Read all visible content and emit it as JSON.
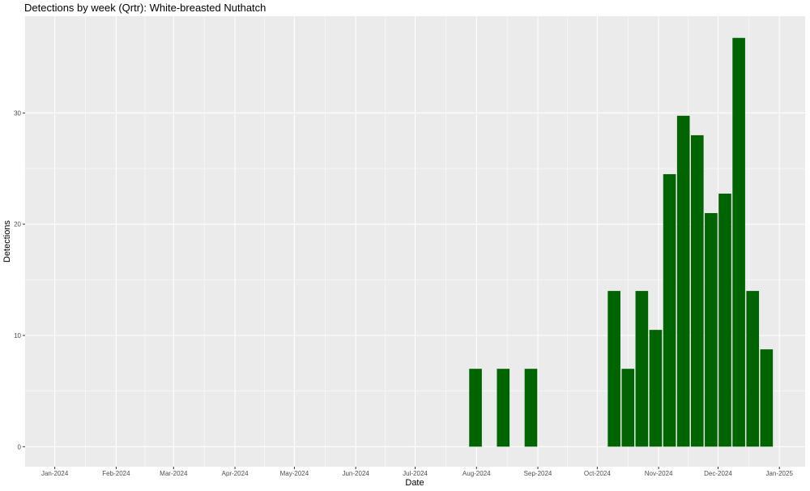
{
  "chart_data": {
    "type": "bar",
    "title": "Detections by week (Qrtr): White-breasted Nuthatch",
    "xlabel": "Date",
    "ylabel": "Detections",
    "x_range": [
      "2023-12-17",
      "2025-01-14"
    ],
    "ylim": [
      -1.8,
      38.7
    ],
    "x_ticks": [
      {
        "date": "2024-01-01",
        "label": "Jan-2024"
      },
      {
        "date": "2024-02-01",
        "label": "Feb-2024"
      },
      {
        "date": "2024-03-01",
        "label": "Mar-2024"
      },
      {
        "date": "2024-04-01",
        "label": "Apr-2024"
      },
      {
        "date": "2024-05-01",
        "label": "May-2024"
      },
      {
        "date": "2024-06-01",
        "label": "Jun-2024"
      },
      {
        "date": "2024-07-01",
        "label": "Jul-2024"
      },
      {
        "date": "2024-08-01",
        "label": "Aug-2024"
      },
      {
        "date": "2024-09-01",
        "label": "Sep-2024"
      },
      {
        "date": "2024-10-01",
        "label": "Oct-2024"
      },
      {
        "date": "2024-11-01",
        "label": "Nov-2024"
      },
      {
        "date": "2024-12-01",
        "label": "Dec-2024"
      },
      {
        "date": "2025-01-01",
        "label": "Jan-2025"
      }
    ],
    "y_ticks": [
      0,
      10,
      20,
      30
    ],
    "grid": true,
    "bar_color": "#006400",
    "panel_color": "#EBEBEB",
    "grid_color": "#FFFFFF",
    "bars": [
      {
        "week_start": "2024-07-28",
        "value": 7
      },
      {
        "week_start": "2024-08-11",
        "value": 7
      },
      {
        "week_start": "2024-08-25",
        "value": 7
      },
      {
        "week_start": "2024-10-06",
        "value": 14
      },
      {
        "week_start": "2024-10-13",
        "value": 7
      },
      {
        "week_start": "2024-10-20",
        "value": 14
      },
      {
        "week_start": "2024-10-27",
        "value": 10.5
      },
      {
        "week_start": "2024-11-03",
        "value": 24.5
      },
      {
        "week_start": "2024-11-10",
        "value": 29.75
      },
      {
        "week_start": "2024-11-17",
        "value": 28
      },
      {
        "week_start": "2024-11-24",
        "value": 21
      },
      {
        "week_start": "2024-12-01",
        "value": 22.75
      },
      {
        "week_start": "2024-12-08",
        "value": 36.75
      },
      {
        "week_start": "2024-12-15",
        "value": 14
      },
      {
        "week_start": "2024-12-22",
        "value": 8.75
      }
    ]
  }
}
